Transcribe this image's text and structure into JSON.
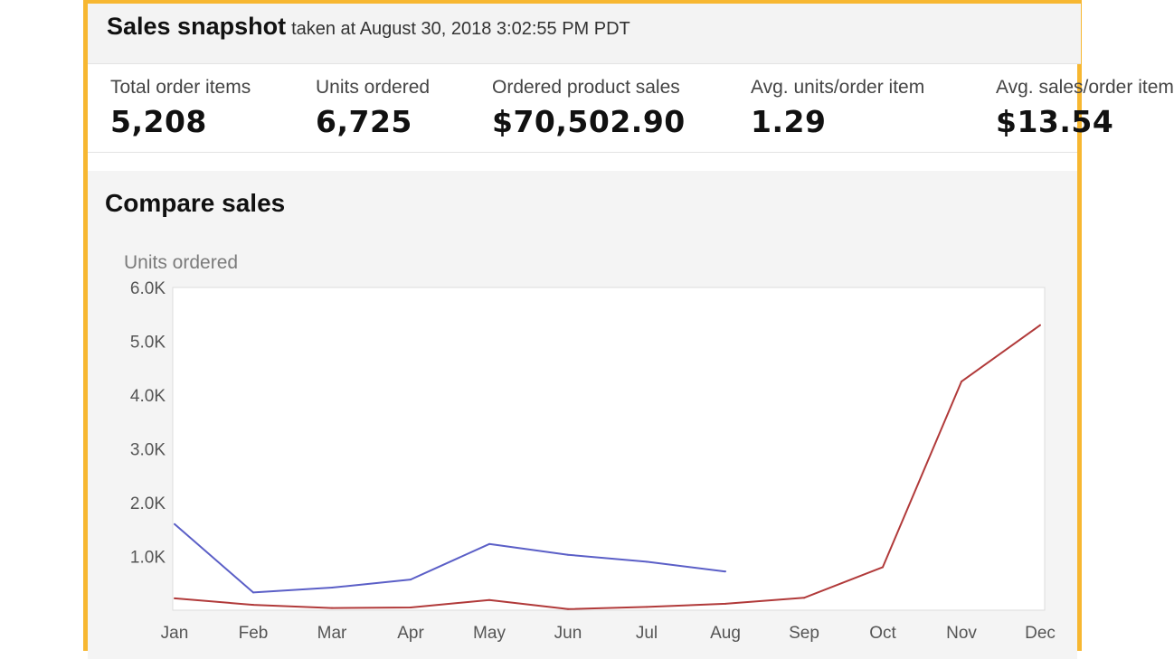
{
  "snapshot": {
    "title": "Sales snapshot",
    "subtitle": "taken at August 30, 2018 3:02:55 PM PDT"
  },
  "metrics": [
    {
      "label": "Total order items",
      "value": "5,208"
    },
    {
      "label": "Units ordered",
      "value": "6,725"
    },
    {
      "label": "Ordered product sales",
      "value": "$70,502.90"
    },
    {
      "label": "Avg. units/order item",
      "value": "1.29"
    },
    {
      "label": "Avg. sales/order item",
      "value": "$13.54"
    }
  ],
  "compare": {
    "title": "Compare sales"
  },
  "chart_data": {
    "type": "line",
    "ylabel": "Units ordered",
    "categories": [
      "Jan",
      "Feb",
      "Mar",
      "Apr",
      "May",
      "Jun",
      "Jul",
      "Aug",
      "Sep",
      "Oct",
      "Nov",
      "Dec"
    ],
    "ylim": [
      0,
      6000
    ],
    "yticks": [
      {
        "value": 1000,
        "label": "1.0K"
      },
      {
        "value": 2000,
        "label": "2.0K"
      },
      {
        "value": 3000,
        "label": "3.0K"
      },
      {
        "value": 4000,
        "label": "4.0K"
      },
      {
        "value": 5000,
        "label": "5.0K"
      },
      {
        "value": 6000,
        "label": "6.0K"
      }
    ],
    "grid": false,
    "series": [
      {
        "color": "#5b5fc7",
        "values": [
          1600,
          330,
          420,
          570,
          1230,
          1030,
          900,
          720,
          null,
          null,
          null,
          null
        ]
      },
      {
        "color": "#b13a3a",
        "values": [
          220,
          100,
          40,
          50,
          190,
          20,
          60,
          120,
          230,
          800,
          4250,
          5300
        ]
      }
    ]
  }
}
